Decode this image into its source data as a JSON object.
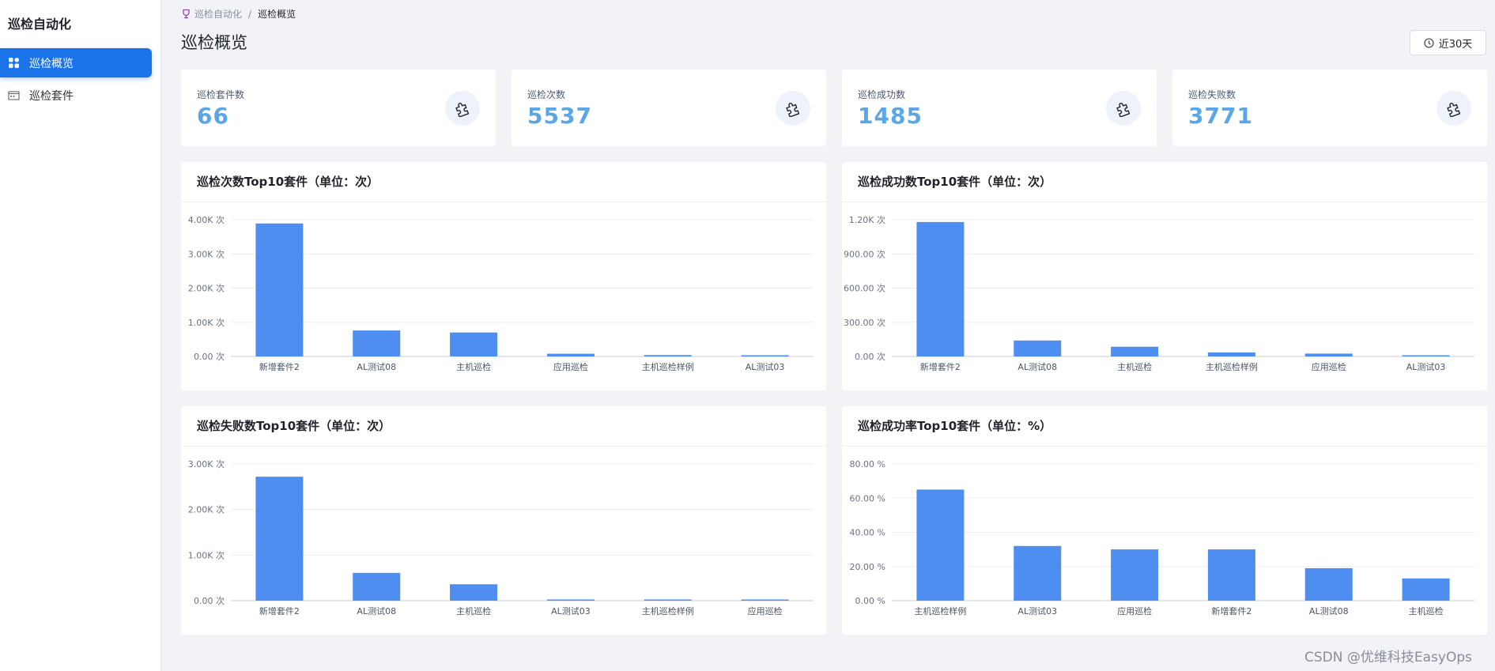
{
  "app": {
    "title": "巡检自动化"
  },
  "sidebar": {
    "items": [
      {
        "label": "巡检概览",
        "active": true
      },
      {
        "label": "巡检套件",
        "active": false
      }
    ]
  },
  "breadcrumb": {
    "root": "巡检自动化",
    "separator": "/",
    "current": "巡检概览"
  },
  "page": {
    "title": "巡检概览",
    "range_label": "近30天"
  },
  "stats": [
    {
      "label": "巡检套件数",
      "value": "66"
    },
    {
      "label": "巡检次数",
      "value": "5537"
    },
    {
      "label": "巡检成功数",
      "value": "1485"
    },
    {
      "label": "巡检失败数",
      "value": "3771"
    }
  ],
  "colors": {
    "accent": "#1a73e8",
    "bar": "#4e8ef0",
    "stat_value": "#5aa6e6"
  },
  "chart_data": [
    {
      "type": "bar",
      "title": "巡检次数Top10套件（单位：次）",
      "categories": [
        "新增套件2",
        "AL测试08",
        "主机巡检",
        "应用巡检",
        "主机巡检样例",
        "AL测试03"
      ],
      "values": [
        3890,
        760,
        700,
        80,
        40,
        25
      ],
      "yticks": [
        "0.00 次",
        "1.00K 次",
        "2.00K 次",
        "3.00K 次",
        "4.00K 次"
      ],
      "ylim": [
        0,
        4000
      ]
    },
    {
      "type": "bar",
      "title": "巡检成功数Top10套件（单位：次）",
      "categories": [
        "新增套件2",
        "AL测试08",
        "主机巡检",
        "主机巡检样例",
        "应用巡检",
        "AL测试03"
      ],
      "values": [
        1180,
        140,
        85,
        35,
        25,
        10
      ],
      "yticks": [
        "0.00 次",
        "300.00 次",
        "600.00 次",
        "900.00 次",
        "1.20K 次"
      ],
      "ylim": [
        0,
        1200
      ]
    },
    {
      "type": "bar",
      "title": "巡检失败数Top10套件（单位：次）",
      "categories": [
        "新增套件2",
        "AL测试08",
        "主机巡检",
        "AL测试03",
        "主机巡检样例",
        "应用巡检"
      ],
      "values": [
        2720,
        610,
        360,
        20,
        10,
        10
      ],
      "yticks": [
        "0.00 次",
        "1.00K 次",
        "2.00K 次",
        "3.00K 次"
      ],
      "ylim": [
        0,
        3000
      ]
    },
    {
      "type": "bar",
      "title": "巡检成功率Top10套件（单位：%）",
      "categories": [
        "主机巡检样例",
        "AL测试03",
        "应用巡检",
        "新增套件2",
        "AL测试08",
        "主机巡检"
      ],
      "values": [
        65,
        32,
        30,
        30,
        19,
        13
      ],
      "yticks": [
        "0.00 %",
        "20.00 %",
        "40.00 %",
        "60.00 %",
        "80.00 %"
      ],
      "ylim": [
        0,
        80
      ]
    }
  ],
  "watermark": "CSDN @优维科技EasyOps"
}
